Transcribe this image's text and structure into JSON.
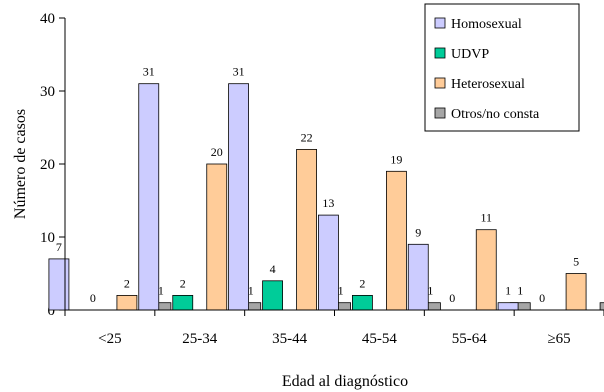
{
  "chart_data": {
    "type": "bar",
    "xlabel": "Edad al diagnóstico",
    "ylabel": "Número de casos",
    "ylim": [
      0,
      40
    ],
    "yticks": [
      0,
      10,
      20,
      30,
      40
    ],
    "categories": [
      "<25",
      "25-34",
      "35-44",
      "45-54",
      "55-64",
      "≥65"
    ],
    "series": [
      {
        "name": "Homosexual",
        "color": "#ccccff",
        "values": [
          7,
          31,
          31,
          13,
          9,
          1
        ]
      },
      {
        "name": "UDVP",
        "color": "#00cc99",
        "values": [
          0,
          2,
          4,
          2,
          0,
          0
        ]
      },
      {
        "name": "Heterosexual",
        "color": "#ffcc99",
        "values": [
          2,
          20,
          22,
          19,
          11,
          5
        ]
      },
      {
        "name": "Otros/no consta",
        "color": "#a6a6a6",
        "values": [
          1,
          1,
          1,
          1,
          1,
          1
        ]
      }
    ],
    "legend_position": "top-right",
    "grid": false
  }
}
